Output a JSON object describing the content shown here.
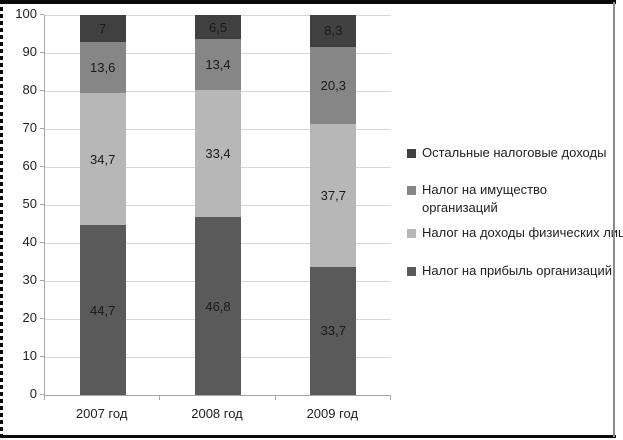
{
  "chart_data": {
    "type": "bar",
    "stacked": true,
    "title": "",
    "categories": [
      "2007 год",
      "2008 год",
      "2009 год"
    ],
    "series": [
      {
        "name": "Налог на прибыль организаций",
        "values": [
          44.7,
          46.8,
          33.7
        ],
        "labels": [
          "44,7",
          "46,8",
          "33,7"
        ],
        "color": "#5a5a5a"
      },
      {
        "name": "Налог на доходы физических лиц",
        "values": [
          34.7,
          33.4,
          37.7
        ],
        "labels": [
          "34,7",
          "33,4",
          "37,7"
        ],
        "color": "#b7b7b7"
      },
      {
        "name": "Налог на имущество организаций",
        "values": [
          13.6,
          13.4,
          20.3
        ],
        "labels": [
          "13,6",
          "13,4",
          "20,3"
        ],
        "color": "#868686"
      },
      {
        "name": "Остальные налоговые доходы",
        "values": [
          7.0,
          6.5,
          8.3
        ],
        "labels": [
          "7",
          "6,5",
          "8,3"
        ],
        "color": "#404040"
      }
    ],
    "y_axis": {
      "min": 0,
      "max": 100,
      "step": 10,
      "tick_labels": [
        "0",
        "10",
        "20",
        "30",
        "40",
        "50",
        "60",
        "70",
        "80",
        "90",
        "100"
      ]
    },
    "legend": {
      "position": "right",
      "series_order_top_to_bottom": [
        3,
        2,
        1,
        0
      ]
    },
    "grid": true,
    "colors": {
      "gridline": "#d6d6d6",
      "axis": "#a6a6a6",
      "text": "#1f1f1f"
    }
  }
}
